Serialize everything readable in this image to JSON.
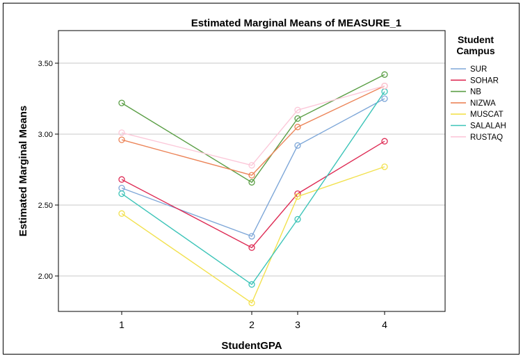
{
  "chart_data": {
    "type": "line",
    "title": "Estimated Marginal Means of MEASURE_1",
    "xlabel": "StudentGPA",
    "ylabel": "Estimated Marginal Means",
    "categories": [
      "1",
      "2",
      "3",
      "4"
    ],
    "ylim": [
      1.75,
      3.73
    ],
    "yticks": [
      2.0,
      2.5,
      3.0,
      3.5
    ],
    "ytick_labels": [
      "2.00",
      "2.50",
      "3.00",
      "3.50"
    ],
    "grid": "horizontal",
    "legend_title_lines": [
      "Student",
      "Campus"
    ],
    "legend_position": "right",
    "series": [
      {
        "name": "SUR",
        "color": "#7ea7d8",
        "values": [
          2.62,
          2.28,
          2.92,
          3.25
        ]
      },
      {
        "name": "SOHAR",
        "color": "#de2c55",
        "values": [
          2.68,
          2.2,
          2.58,
          2.95
        ]
      },
      {
        "name": "NB",
        "color": "#5a9e45",
        "values": [
          3.22,
          2.66,
          3.11,
          3.42
        ]
      },
      {
        "name": "NIZWA",
        "color": "#ec8458",
        "values": [
          2.96,
          2.71,
          3.05,
          3.34
        ]
      },
      {
        "name": "MUSCAT",
        "color": "#f2e14e",
        "values": [
          2.44,
          1.81,
          2.56,
          2.77
        ]
      },
      {
        "name": "SALALAH",
        "color": "#3cc4b8",
        "values": [
          2.58,
          1.94,
          2.4,
          3.3
        ]
      },
      {
        "name": "RUSTAQ",
        "color": "#fcc8d9",
        "values": [
          3.01,
          2.78,
          3.17,
          3.34
        ]
      }
    ]
  }
}
